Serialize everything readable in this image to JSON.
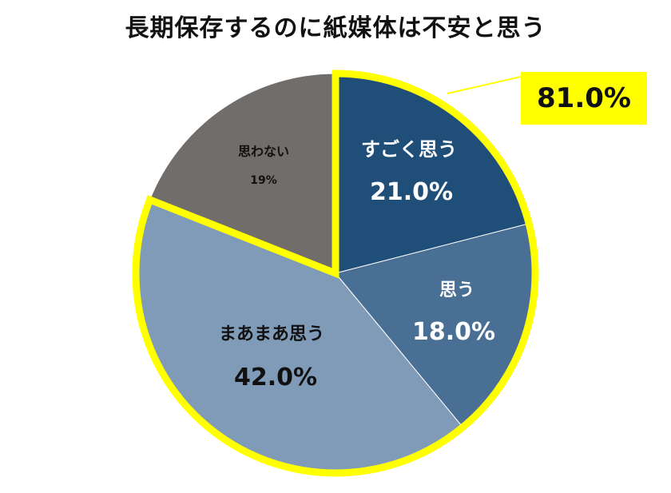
{
  "chart_data": {
    "type": "pie",
    "title": "長期保存するのに紙媒体は不安と思う",
    "slices": [
      {
        "label": "すごく思う",
        "value": 21.0,
        "value_label": "21.0%",
        "color": "#1f4e79"
      },
      {
        "label": "思う",
        "value": 18.0,
        "value_label": "18.0%",
        "color": "#4a6f95"
      },
      {
        "label": "まあまあ思う",
        "value": 42.0,
        "value_label": "42.0%",
        "color": "#7f9bb8"
      },
      {
        "label": "思わない",
        "value": 19.0,
        "value_label": "19%",
        "color": "#716d6b"
      }
    ],
    "highlight_total": "81.0%",
    "highlight_color": "#ffff00"
  }
}
